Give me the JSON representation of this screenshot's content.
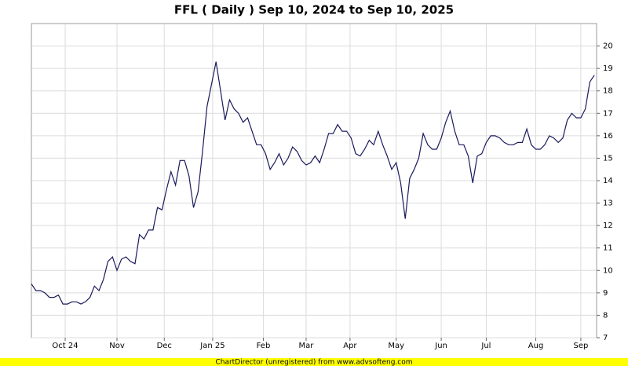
{
  "chart_data": {
    "type": "line",
    "title": "FFL ( Daily ) Sep 10, 2024 to Sep 10, 2025",
    "footer": "ChartDirector (unregistered) from www.advsofteng.com",
    "x": [
      0,
      2,
      4,
      6,
      8,
      10,
      12,
      14,
      16,
      18,
      20,
      22,
      24,
      26,
      28,
      30,
      32,
      34,
      36,
      38,
      40,
      42,
      44,
      46,
      48,
      50,
      52,
      54,
      56,
      58,
      60,
      62,
      64,
      66,
      68,
      70,
      72,
      74,
      76,
      78,
      80,
      82,
      84,
      86,
      88,
      90,
      92,
      94,
      96,
      98,
      100,
      102,
      104,
      106,
      108,
      110,
      112,
      114,
      116,
      118,
      120,
      122,
      124,
      126,
      128,
      130,
      132,
      134,
      136,
      138,
      140,
      142,
      144,
      146,
      148,
      150,
      152,
      154,
      156,
      158,
      160,
      162,
      164,
      166,
      168,
      170,
      172,
      174,
      176,
      178,
      180,
      182,
      184,
      186,
      188,
      190,
      192,
      194,
      196,
      198,
      200,
      202,
      204,
      206,
      208,
      210,
      212,
      214,
      216,
      218,
      220,
      222,
      224,
      226,
      228,
      230,
      232,
      234,
      236,
      238,
      240,
      242,
      244,
      246,
      248,
      250
    ],
    "series": [
      {
        "color": "#1a1a5e",
        "values": [
          9.4,
          9.1,
          9.1,
          9.0,
          8.8,
          8.8,
          8.9,
          8.5,
          8.5,
          8.6,
          8.6,
          8.5,
          8.6,
          8.8,
          9.3,
          9.1,
          9.6,
          10.4,
          10.6,
          10.0,
          10.5,
          10.6,
          10.4,
          10.3,
          11.6,
          11.4,
          11.8,
          11.8,
          12.8,
          12.7,
          13.6,
          14.4,
          13.8,
          14.9,
          14.9,
          14.2,
          12.8,
          13.5,
          15.3,
          17.3,
          18.3,
          19.3,
          18.0,
          16.7,
          17.6,
          17.2,
          17.0,
          16.6,
          16.8,
          16.2,
          15.6,
          15.6,
          15.2,
          14.5,
          14.8,
          15.2,
          14.7,
          15.0,
          15.5,
          15.3,
          14.9,
          14.7,
          14.8,
          15.1,
          14.8,
          15.4,
          16.1,
          16.1,
          16.5,
          16.2,
          16.2,
          15.9,
          15.2,
          15.1,
          15.4,
          15.8,
          15.6,
          16.2,
          15.6,
          15.1,
          14.5,
          14.8,
          13.9,
          12.3,
          14.1,
          14.5,
          15.0,
          16.1,
          15.6,
          15.4,
          15.4,
          15.9,
          16.6,
          17.1,
          16.2,
          15.6,
          15.6,
          15.1,
          13.9,
          15.1,
          15.2,
          15.7,
          16.0,
          16.0,
          15.9,
          15.7,
          15.6,
          15.6,
          15.7,
          15.7,
          16.3,
          15.6,
          15.4,
          15.4,
          15.6,
          16.0,
          15.9,
          15.7,
          15.9,
          16.7,
          17.0,
          16.8,
          16.8,
          17.2,
          18.4,
          18.7
        ]
      }
    ],
    "xlim": [
      0,
      251
    ],
    "xticks": [
      {
        "value": 15,
        "label": "Oct 24"
      },
      {
        "value": 38,
        "label": "Nov"
      },
      {
        "value": 59,
        "label": "Dec"
      },
      {
        "value": 80.5,
        "label": "Jan 25"
      },
      {
        "value": 103,
        "label": "Feb"
      },
      {
        "value": 122,
        "label": "Mar"
      },
      {
        "value": 141.5,
        "label": "Apr"
      },
      {
        "value": 162,
        "label": "May"
      },
      {
        "value": 182,
        "label": "Jun"
      },
      {
        "value": 202,
        "label": "Jul"
      },
      {
        "value": 224,
        "label": "Aug"
      },
      {
        "value": 244,
        "label": "Sep"
      }
    ],
    "ylim": [
      7,
      21
    ],
    "yticks": [
      7,
      8,
      9,
      10,
      11,
      12,
      13,
      14,
      15,
      16,
      17,
      18,
      19,
      20
    ],
    "grid": true
  }
}
